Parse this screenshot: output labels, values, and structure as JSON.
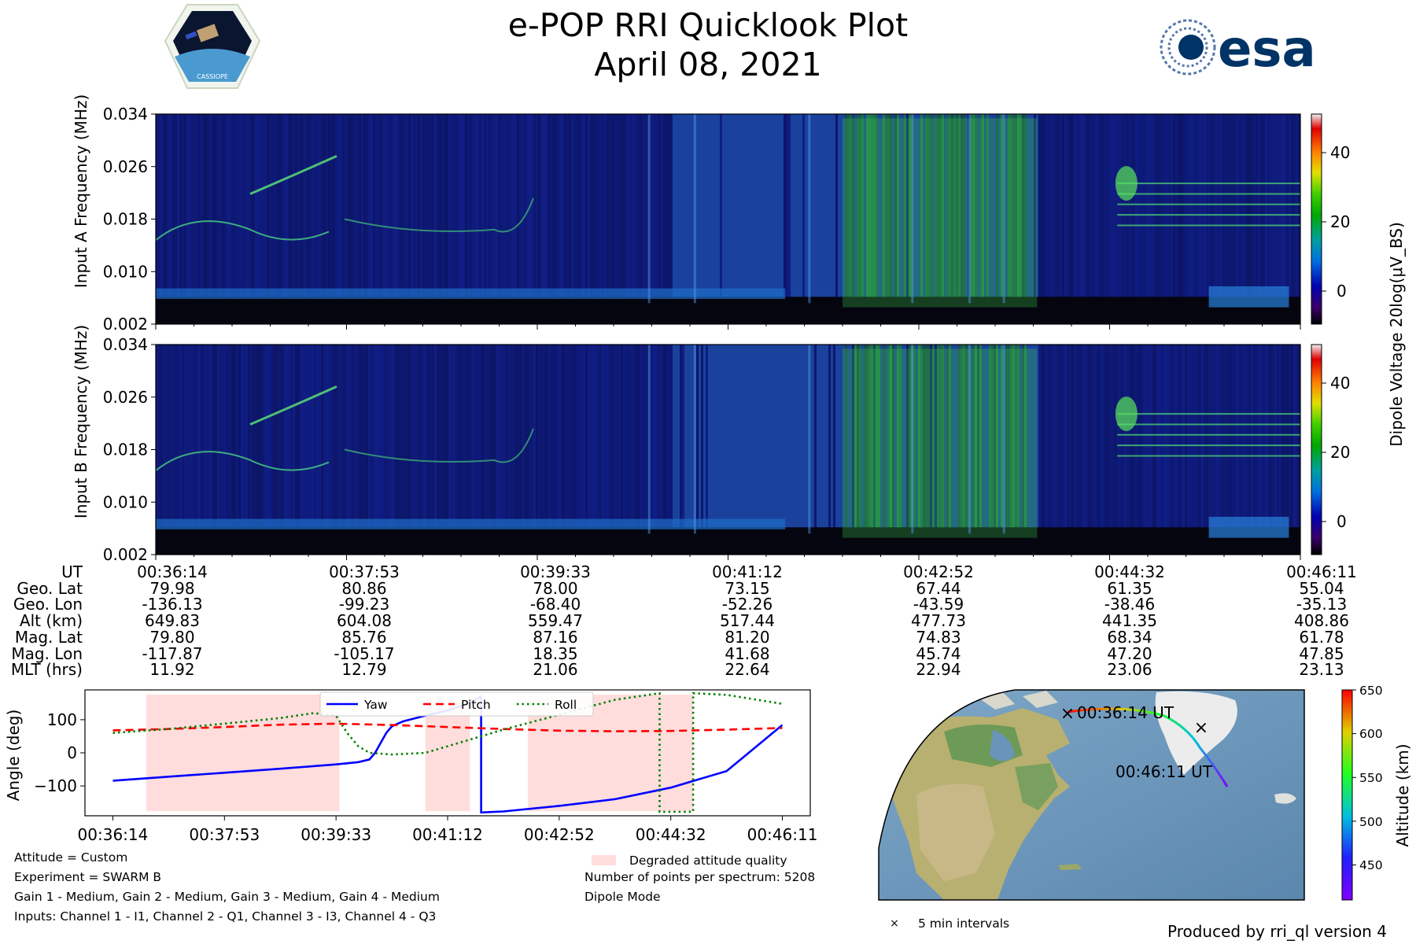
{
  "title": {
    "line1": "e-POP RRI Quicklook Plot",
    "line2": "April 08, 2021"
  },
  "logos": {
    "left": "CASSIOPE",
    "right": "esa"
  },
  "colors": {
    "vmin": -10,
    "vmax": 50
  },
  "spectrograms": [
    {
      "ylabel": "Input A Frequency (MHz)",
      "yticks": [
        "0.034",
        "0.026",
        "0.018",
        "0.010",
        "0.002"
      ]
    },
    {
      "ylabel": "Input B Frequency (MHz)",
      "yticks": [
        "0.034",
        "0.026",
        "0.018",
        "0.010",
        "0.002"
      ]
    }
  ],
  "colorbar": {
    "label": "Dipole Voltage 20log(μV_BS)",
    "ticks": [
      "40",
      "20",
      "0"
    ]
  },
  "orbit_table": {
    "labels": [
      "UT",
      "Geo. Lat",
      "Geo. Lon",
      "Alt (km)",
      "Mag. Lat",
      "Mag. Lon",
      "MLT (hrs)"
    ],
    "columns": [
      [
        "00:36:14",
        "79.98",
        "-136.13",
        "649.83",
        "79.80",
        "-117.87",
        "11.92"
      ],
      [
        "00:37:53",
        "80.86",
        "-99.23",
        "604.08",
        "85.76",
        "-105.17",
        "12.79"
      ],
      [
        "00:39:33",
        "78.00",
        "-68.40",
        "559.47",
        "87.16",
        "18.35",
        "21.06"
      ],
      [
        "00:41:12",
        "73.15",
        "-52.26",
        "517.44",
        "81.20",
        "41.68",
        "22.64"
      ],
      [
        "00:42:52",
        "67.44",
        "-43.59",
        "477.73",
        "74.83",
        "45.74",
        "22.94"
      ],
      [
        "00:44:32",
        "61.35",
        "-38.46",
        "441.35",
        "68.34",
        "47.20",
        "23.06"
      ],
      [
        "00:46:11",
        "55.04",
        "-35.13",
        "408.86",
        "61.78",
        "47.85",
        "23.13"
      ]
    ]
  },
  "chart_data": {
    "type": "line",
    "title": "",
    "xlabel": "",
    "ylabel": "Angle (deg)",
    "x_ticks": [
      "00:36:14",
      "00:37:53",
      "00:39:33",
      "00:41:12",
      "00:42:52",
      "00:44:32",
      "00:46:11"
    ],
    "y_ticks": [
      "100",
      "0",
      "−100"
    ],
    "ylim": [
      -190,
      190
    ],
    "series": [
      {
        "name": "Yaw",
        "color": "#0000ff",
        "style": "solid",
        "x": [
          0,
          0.5,
          1,
          1.5,
          2,
          2.2,
          2.3,
          2.35,
          2.4,
          2.45,
          2.5,
          2.6,
          2.8,
          3,
          3.2,
          3.3,
          3.3,
          3.5,
          4,
          4.5,
          5,
          5.5,
          6
        ],
        "y": [
          -84,
          -72,
          -60,
          -48,
          -35,
          -28,
          -20,
          0,
          30,
          60,
          80,
          95,
          112,
          128,
          150,
          170,
          -180,
          -177,
          -160,
          -140,
          -105,
          -55,
          84
        ]
      },
      {
        "name": "Pitch",
        "color": "#ff0000",
        "style": "dashed",
        "x": [
          0,
          0.5,
          1,
          1.5,
          2,
          2.5,
          3,
          3.5,
          4,
          4.5,
          5,
          5.5,
          6
        ],
        "y": [
          68,
          72,
          78,
          85,
          88,
          84,
          78,
          72,
          67,
          65,
          66,
          70,
          75
        ]
      },
      {
        "name": "Roll",
        "color": "#008000",
        "style": "dotted",
        "x": [
          0,
          0.5,
          1,
          1.5,
          1.8,
          2,
          2.1,
          2.2,
          2.3,
          2.5,
          2.8,
          3,
          3.5,
          4,
          4.5,
          4.9,
          4.9,
          5.2,
          5.2,
          5.5,
          6
        ],
        "y": [
          60,
          72,
          88,
          105,
          120,
          112,
          60,
          20,
          0,
          -5,
          0,
          20,
          70,
          115,
          160,
          180,
          -178,
          -178,
          180,
          175,
          148
        ]
      }
    ],
    "degraded_spans": [
      [
        0.3,
        2.03
      ],
      [
        2.8,
        3.2
      ],
      [
        3.72,
        5.2
      ]
    ],
    "legend_degraded": "Degraded attitude quality",
    "legend_position": "top-center"
  },
  "attitude_notes": [
    "Attitude = Custom",
    "Experiment = SWARM B",
    "Gain 1 - Medium, Gain 2 - Medium, Gain 3 - Medium, Gain 4 - Medium",
    "Inputs: Channel 1 - I1, Channel 2 - Q1, Channel 3 - I3, Channel 4 - Q3"
  ],
  "mode_notes": [
    "Number of points per spectrum: 5208",
    "Dipole Mode"
  ],
  "map": {
    "start_label": "00:36:14 UT",
    "end_label": "00:46:11 UT",
    "marker_note": "5 min intervals",
    "colorbar_label": "Altitude (km)",
    "colorbar_ticks": [
      "650",
      "600",
      "550",
      "500",
      "450"
    ],
    "alt_min": 410,
    "alt_max": 650
  },
  "footer": "Produced by rri_ql version 4"
}
